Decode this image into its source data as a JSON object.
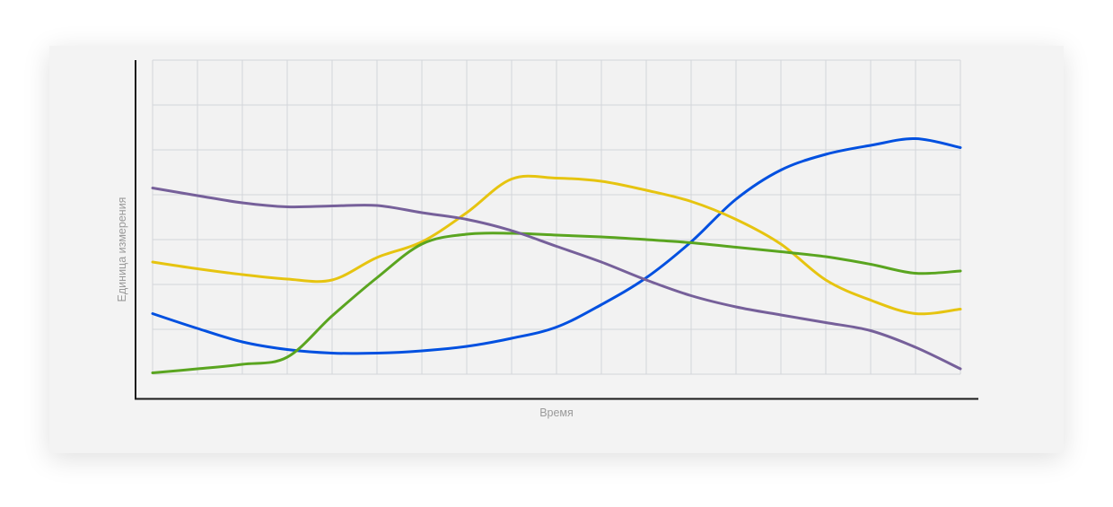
{
  "chart_data": {
    "type": "line",
    "title": "",
    "xlabel": "Время",
    "ylabel": "Единица измерения",
    "grid": true,
    "legend": "none",
    "x": [
      0,
      1,
      2,
      3,
      4,
      5,
      6,
      7,
      8,
      9,
      10,
      11,
      12,
      13,
      14,
      15,
      16,
      17,
      18
    ],
    "xlim": [
      0,
      18
    ],
    "ylim": [
      0,
      7
    ],
    "series": [
      {
        "color": "#0050e0",
        "values": [
          1.35,
          1.02,
          0.72,
          0.55,
          0.47,
          0.47,
          0.52,
          0.62,
          0.8,
          1.05,
          1.55,
          2.15,
          2.95,
          3.9,
          4.55,
          4.9,
          5.1,
          5.25,
          5.05
        ]
      },
      {
        "color": "#e6c410",
        "values": [
          2.5,
          2.35,
          2.22,
          2.12,
          2.1,
          2.6,
          2.95,
          3.6,
          4.35,
          4.37,
          4.3,
          4.1,
          3.85,
          3.45,
          2.9,
          2.1,
          1.65,
          1.35,
          1.45
        ]
      },
      {
        "color": "#5aa520",
        "values": [
          0.03,
          0.12,
          0.22,
          0.38,
          1.3,
          2.15,
          2.9,
          3.12,
          3.14,
          3.1,
          3.06,
          3.0,
          2.93,
          2.83,
          2.73,
          2.62,
          2.45,
          2.25,
          2.3
        ]
      },
      {
        "color": "#76609a",
        "values": [
          4.15,
          3.98,
          3.82,
          3.73,
          3.75,
          3.76,
          3.6,
          3.45,
          3.2,
          2.85,
          2.5,
          2.1,
          1.75,
          1.5,
          1.32,
          1.15,
          0.97,
          0.6,
          0.12
        ]
      }
    ]
  }
}
